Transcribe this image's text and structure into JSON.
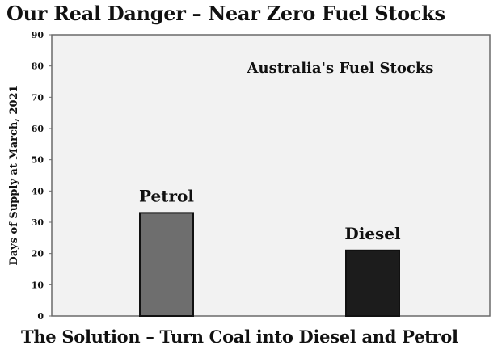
{
  "headline": "Our Real Danger – Near Zero Fuel Stocks",
  "footer": "The Solution  – Turn Coal into Diesel and Petrol",
  "chart_data": {
    "type": "bar",
    "title": "Australia's Fuel Stocks",
    "xlabel": "",
    "ylabel": "Days of Supply at March, 2021",
    "categories": [
      "Petrol",
      "Diesel"
    ],
    "values": [
      33,
      21
    ],
    "colors": [
      "#6e6e6e",
      "#1c1c1c"
    ],
    "plot_background": "#f2f2f2",
    "ylim": [
      0,
      90
    ],
    "yticks": [
      0,
      10,
      20,
      30,
      40,
      50,
      60,
      70,
      80,
      90
    ],
    "grid": false,
    "legend": "none"
  }
}
